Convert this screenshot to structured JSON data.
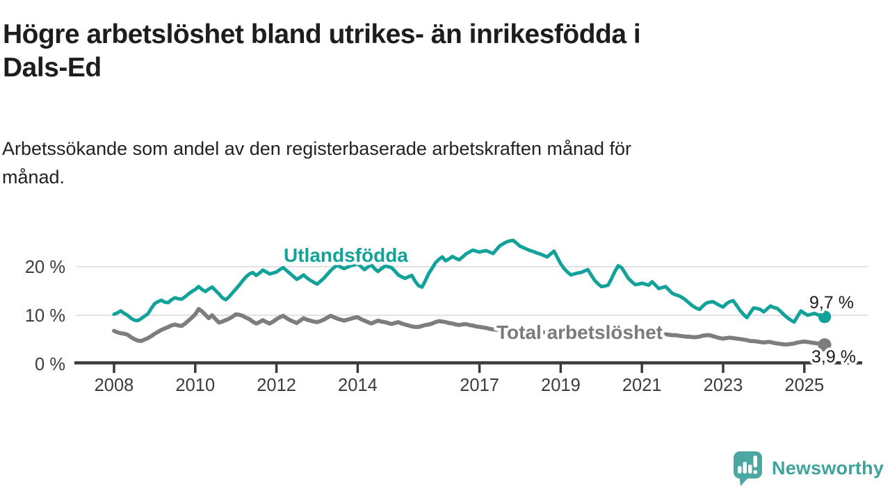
{
  "header": {
    "title_lines": [
      "Högre arbetslöshet bland utrikes- än inrikesfödda i",
      "Dals-Ed"
    ],
    "subtitle_lines": [
      "Arbetssökande som andel av den registerbaserade arbetskraften månad för",
      "månad."
    ]
  },
  "chart_data": {
    "type": "line",
    "title": "Högre arbetslöshet bland utrikes- än inrikesfödda i Dals-Ed",
    "subtitle": "Arbetssökande som andel av den registerbaserade arbetskraften månad för månad.",
    "unit": "%",
    "frequency": "monthly",
    "start": "2008-01",
    "end": "2025-07",
    "ylim": [
      0,
      27
    ],
    "grid": "horizontal",
    "legend_position": "inline-labels",
    "y_ticks": [
      {
        "value": 0,
        "label": "0 %"
      },
      {
        "value": 10,
        "label": "10 %"
      },
      {
        "value": 20,
        "label": "20 %"
      }
    ],
    "x_ticks": [
      {
        "year": 2008,
        "label": "2008"
      },
      {
        "year": 2010,
        "label": "2010"
      },
      {
        "year": 2012,
        "label": "2012"
      },
      {
        "year": 2014,
        "label": "2014"
      },
      {
        "year": 2017,
        "label": "2017"
      },
      {
        "year": 2019,
        "label": "2019"
      },
      {
        "year": 2021,
        "label": "2021"
      },
      {
        "year": 2023,
        "label": "2023"
      },
      {
        "year": 2025,
        "label": "2025"
      }
    ],
    "series": [
      {
        "name": "Utlandsfödda",
        "color": "#12a29a",
        "end_label": "9,7 %",
        "last_value": 9.7,
        "values": [
          10.2,
          10.5,
          10.9,
          10.4,
          10.0,
          9.4,
          9.0,
          8.9,
          9.3,
          9.8,
          10.3,
          11.4,
          12.4,
          12.8,
          13.1,
          12.7,
          12.6,
          13.2,
          13.6,
          13.4,
          13.3,
          13.8,
          14.4,
          14.9,
          15.3,
          15.9,
          15.3,
          14.9,
          15.4,
          15.8,
          15.1,
          14.4,
          13.6,
          13.2,
          13.8,
          14.6,
          15.4,
          16.2,
          17.1,
          17.9,
          18.5,
          18.8,
          18.2,
          18.7,
          19.3,
          18.9,
          18.5,
          18.7,
          18.9,
          19.4,
          19.8,
          19.2,
          18.6,
          18.0,
          17.4,
          17.8,
          18.3,
          17.7,
          17.2,
          16.8,
          16.4,
          17.0,
          17.6,
          18.4,
          19.2,
          19.8,
          20.3,
          19.9,
          19.6,
          19.9,
          20.2,
          20.4,
          20.6,
          20.0,
          19.4,
          19.9,
          20.4,
          19.6,
          19.0,
          19.6,
          20.1,
          20.0,
          19.8,
          19.1,
          18.3,
          17.9,
          17.6,
          17.9,
          18.2,
          17.0,
          16.1,
          15.8,
          17.1,
          18.6,
          19.7,
          20.8,
          21.5,
          22.0,
          21.2,
          21.6,
          22.1,
          21.7,
          21.4,
          22.0,
          22.6,
          23.0,
          23.4,
          23.2,
          23.0,
          23.2,
          23.3,
          23.0,
          22.7,
          23.5,
          24.3,
          24.7,
          25.1,
          25.3,
          25.4,
          24.8,
          24.2,
          23.9,
          23.6,
          23.3,
          23.1,
          22.8,
          22.6,
          22.3,
          22.0,
          22.6,
          23.2,
          21.9,
          20.6,
          19.6,
          18.9,
          18.3,
          18.5,
          18.7,
          18.8,
          19.1,
          19.4,
          18.3,
          17.2,
          16.5,
          15.9,
          16.0,
          16.2,
          17.5,
          19.0,
          20.2,
          19.8,
          18.7,
          17.6,
          16.9,
          16.3,
          16.4,
          16.6,
          16.4,
          16.2,
          16.9,
          16.2,
          15.5,
          15.7,
          15.9,
          15.2,
          14.5,
          14.2,
          14.0,
          13.6,
          13.1,
          12.5,
          11.9,
          11.5,
          11.2,
          11.9,
          12.5,
          12.7,
          12.8,
          12.4,
          12.0,
          11.7,
          12.4,
          12.8,
          13.0,
          12.0,
          11.0,
          10.2,
          9.5,
          10.5,
          11.5,
          11.4,
          11.2,
          10.7,
          11.3,
          11.9,
          11.6,
          11.4,
          10.8,
          10.1,
          9.5,
          9.0,
          8.6,
          9.8,
          10.9,
          10.4,
          10.0,
          10.2,
          10.4,
          10.1,
          9.9,
          9.7
        ]
      },
      {
        "name": "Total arbetslöshet",
        "color": "#7d7d7d",
        "end_label": "3,9 %",
        "last_value": 3.9,
        "values": [
          6.8,
          6.5,
          6.3,
          6.2,
          6.0,
          5.5,
          5.1,
          4.8,
          4.7,
          5.0,
          5.3,
          5.7,
          6.2,
          6.6,
          7.0,
          7.3,
          7.6,
          7.9,
          8.1,
          7.9,
          7.8,
          8.3,
          8.9,
          9.5,
          10.2,
          11.3,
          10.8,
          10.1,
          9.4,
          10.0,
          9.2,
          8.5,
          8.7,
          9.0,
          9.3,
          9.7,
          10.2,
          10.1,
          9.9,
          9.5,
          9.2,
          8.7,
          8.3,
          8.6,
          9.0,
          8.6,
          8.3,
          8.7,
          9.2,
          9.6,
          9.9,
          9.4,
          9.0,
          8.7,
          8.4,
          8.9,
          9.4,
          9.1,
          8.9,
          8.7,
          8.6,
          8.8,
          9.1,
          9.5,
          9.9,
          9.6,
          9.3,
          9.1,
          8.9,
          9.1,
          9.3,
          9.5,
          9.6,
          9.2,
          8.9,
          8.6,
          8.3,
          8.6,
          8.9,
          8.7,
          8.6,
          8.4,
          8.2,
          8.4,
          8.6,
          8.3,
          8.1,
          7.9,
          7.7,
          7.6,
          7.6,
          7.8,
          8.0,
          8.1,
          8.3,
          8.6,
          8.8,
          8.7,
          8.6,
          8.4,
          8.3,
          8.1,
          8.0,
          8.1,
          8.2,
          8.0,
          7.9,
          7.7,
          7.6,
          7.5,
          7.4,
          7.2,
          7.1,
          7.0,
          7.0,
          6.9,
          6.9,
          6.8,
          6.8,
          6.7,
          6.7,
          6.7,
          6.6,
          6.6,
          6.6,
          6.5,
          6.5,
          6.5,
          6.4,
          6.4,
          6.4,
          6.3,
          6.3,
          6.3,
          6.2,
          6.2,
          6.2,
          6.1,
          6.1,
          6.1,
          6.1,
          6.1,
          6.2,
          6.2,
          6.2,
          6.3,
          6.4,
          6.6,
          6.8,
          6.9,
          6.9,
          6.8,
          6.8,
          6.7,
          6.7,
          6.6,
          6.5,
          6.5,
          6.4,
          6.3,
          6.3,
          6.2,
          6.1,
          6.1,
          6.0,
          5.9,
          5.9,
          5.8,
          5.7,
          5.6,
          5.6,
          5.5,
          5.5,
          5.6,
          5.8,
          5.9,
          5.9,
          5.7,
          5.5,
          5.3,
          5.2,
          5.3,
          5.4,
          5.3,
          5.2,
          5.1,
          5.0,
          4.9,
          4.7,
          4.7,
          4.6,
          4.5,
          4.4,
          4.5,
          4.5,
          4.3,
          4.2,
          4.1,
          4.0,
          4.0,
          4.1,
          4.2,
          4.4,
          4.5,
          4.6,
          4.5,
          4.4,
          4.3,
          4.2,
          4.1,
          3.9
        ]
      }
    ],
    "style": {
      "grid_color": "#d9d9d9",
      "axis_color": "#3a3a3a",
      "tick_label_color": "#3c3c3c",
      "background": "#ffffff"
    }
  },
  "branding": {
    "logo_text": "Newsworthy",
    "logo_color": "#3fa39c",
    "logo_bubble_color": "#4aa7a1"
  }
}
